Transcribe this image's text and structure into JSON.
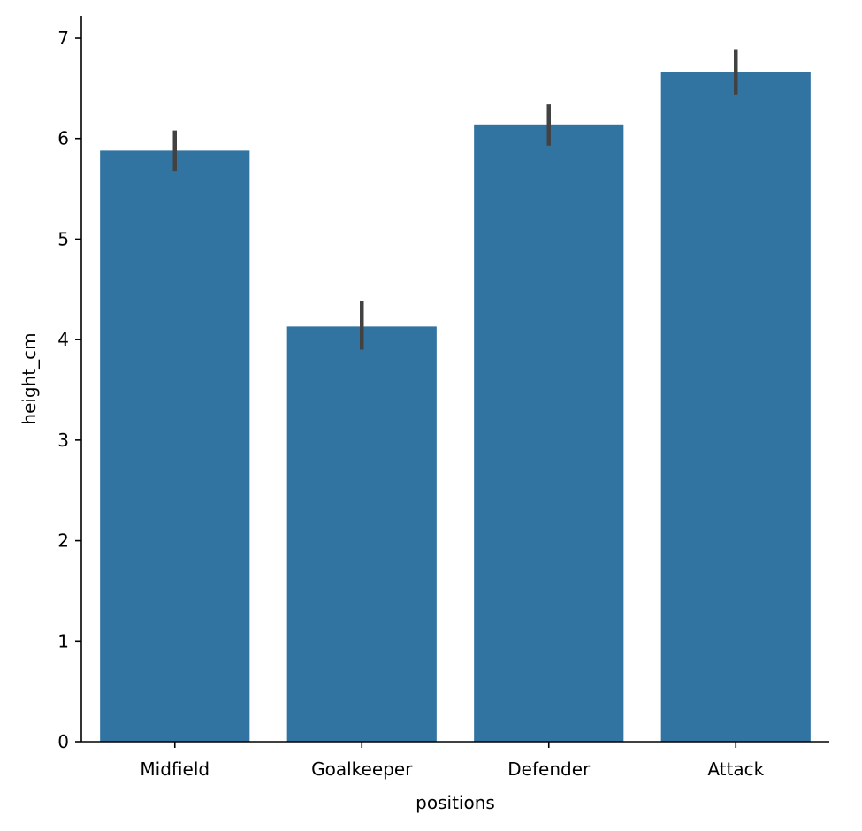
{
  "chart_data": {
    "type": "bar",
    "title": "",
    "xlabel": "positions",
    "ylabel": "height_cm",
    "categories": [
      "Midfield",
      "Goalkeeper",
      "Defender",
      "Attack"
    ],
    "values": [
      5.88,
      4.13,
      6.14,
      6.66
    ],
    "error_bars": [
      [
        5.68,
        6.08
      ],
      [
        3.9,
        4.38
      ],
      [
        5.93,
        6.34
      ],
      [
        6.44,
        6.89
      ]
    ],
    "ylim": [
      0,
      7.22
    ],
    "yticks": [
      0,
      1,
      2,
      3,
      4,
      5,
      6,
      7
    ],
    "grid": false,
    "legend": "none",
    "colors": {
      "bar": "#3274a1",
      "error_bar": "#424242",
      "axis": "#000000"
    }
  }
}
